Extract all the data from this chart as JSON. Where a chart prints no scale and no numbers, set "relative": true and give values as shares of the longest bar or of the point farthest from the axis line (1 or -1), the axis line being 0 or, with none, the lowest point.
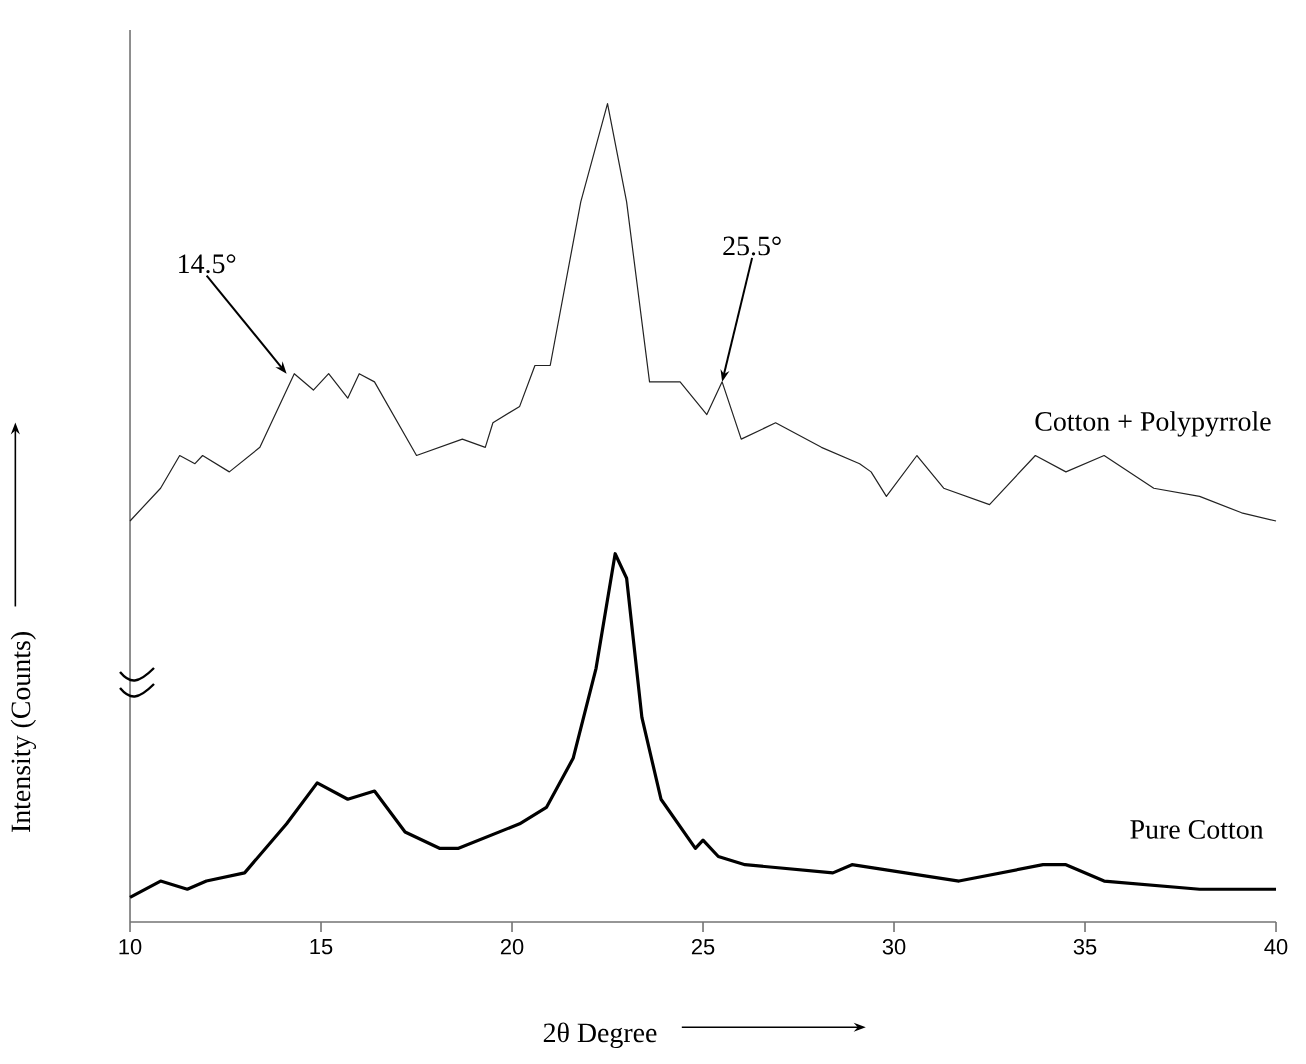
{
  "chart_data": {
    "type": "line",
    "relative": true,
    "xlabel": "2θ Degree",
    "ylabel": "Intensity (Counts)",
    "xlim": [
      10,
      40
    ],
    "xticks": [
      10,
      15,
      20,
      25,
      30,
      35,
      40
    ],
    "annotations": [
      {
        "text": "14.5°",
        "x": 14.1,
        "y": 0.67
      },
      {
        "text": "25.5°",
        "x": 25.5,
        "y": 0.66
      }
    ],
    "series": [
      {
        "name": "Cotton + Polypyrrole",
        "color": "#222222",
        "x": [
          10.0,
          10.8,
          11.3,
          11.7,
          11.9,
          12.6,
          13.4,
          14.3,
          14.8,
          15.2,
          15.7,
          16.0,
          16.4,
          17.5,
          18.7,
          19.3,
          19.5,
          20.2,
          20.6,
          21.0,
          21.8,
          22.5,
          23.0,
          23.6,
          23.9,
          24.4,
          25.1,
          25.5,
          26.0,
          26.9,
          28.1,
          29.1,
          29.4,
          29.8,
          30.6,
          31.3,
          32.5,
          33.7,
          34.5,
          35.5,
          36.8,
          38.0,
          39.1,
          40.0
        ],
        "values": [
          0.49,
          0.53,
          0.57,
          0.56,
          0.57,
          0.55,
          0.58,
          0.67,
          0.65,
          0.67,
          0.64,
          0.67,
          0.66,
          0.57,
          0.59,
          0.58,
          0.61,
          0.63,
          0.68,
          0.68,
          0.88,
          1.0,
          0.88,
          0.66,
          0.66,
          0.66,
          0.62,
          0.66,
          0.59,
          0.61,
          0.58,
          0.56,
          0.55,
          0.52,
          0.57,
          0.53,
          0.51,
          0.57,
          0.55,
          0.57,
          0.53,
          0.52,
          0.5,
          0.49
        ]
      },
      {
        "name": "Pure Cotton",
        "color": "#000000",
        "x": [
          10.0,
          10.8,
          11.5,
          12.0,
          13.0,
          14.1,
          14.9,
          15.7,
          16.4,
          17.2,
          18.1,
          18.6,
          20.2,
          20.9,
          21.6,
          22.2,
          22.7,
          23.0,
          23.4,
          23.9,
          24.8,
          25.0,
          25.4,
          26.1,
          28.4,
          28.9,
          31.7,
          33.9,
          34.5,
          35.5,
          38.0,
          39.1,
          40.0
        ],
        "values": [
          0.03,
          0.05,
          0.04,
          0.05,
          0.06,
          0.12,
          0.17,
          0.15,
          0.16,
          0.11,
          0.09,
          0.09,
          0.12,
          0.14,
          0.2,
          0.31,
          0.45,
          0.42,
          0.25,
          0.15,
          0.09,
          0.1,
          0.08,
          0.07,
          0.06,
          0.07,
          0.05,
          0.07,
          0.07,
          0.05,
          0.04,
          0.04,
          0.04
        ]
      }
    ]
  }
}
